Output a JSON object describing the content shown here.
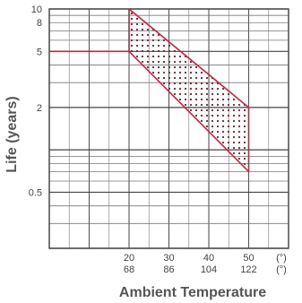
{
  "chart_data": {
    "type": "area",
    "title": "",
    "xlabel": "Ambient Temperature",
    "ylabel": "Life (years)",
    "x_scale": "linear",
    "y_scale": "log",
    "xlim": [
      0,
      60
    ],
    "ylim": [
      0.2,
      10
    ],
    "x_ticks": [
      {
        "value": 20,
        "label": "20",
        "label2": "68"
      },
      {
        "value": 30,
        "label": "30",
        "label2": "86"
      },
      {
        "value": 40,
        "label": "40",
        "label2": "104"
      },
      {
        "value": 50,
        "label": "50",
        "label2": "122"
      }
    ],
    "x_unit_labels": [
      "(°)",
      "(°)"
    ],
    "y_ticks": [
      {
        "value": 10,
        "label": "10"
      },
      {
        "value": 8,
        "label": "8"
      },
      {
        "value": 5,
        "label": "5"
      },
      {
        "value": 2,
        "label": "2"
      },
      {
        "value": 0.5,
        "label": "0.5"
      }
    ],
    "grid": true,
    "band": {
      "upper": {
        "x": [
          20,
          50
        ],
        "y": [
          10,
          2
        ]
      },
      "lower": {
        "x": [
          20,
          50
        ],
        "y": [
          5,
          0.7
        ]
      },
      "lead_in": {
        "x": [
          0,
          20
        ],
        "y": [
          5,
          5
        ]
      },
      "fill": "dotted",
      "line_color": "#c8253a",
      "dot_color": "#7a1f2e"
    }
  }
}
